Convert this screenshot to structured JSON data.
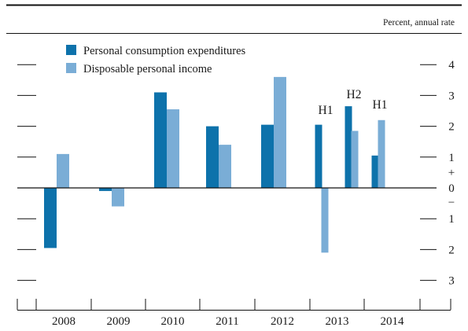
{
  "chart_data": {
    "type": "bar",
    "units": "Percent, annual rate",
    "categories": [
      "2008",
      "2009",
      "2010",
      "2011",
      "2012",
      "2013 H1",
      "2013 H2",
      "2014 H1"
    ],
    "x_tick_labels": [
      "2008",
      "2009",
      "2010",
      "2011",
      "2012",
      "2013",
      "2014"
    ],
    "series": [
      {
        "name": "Personal consumption expenditures",
        "color": "#0d72ab",
        "values": [
          -1.95,
          -0.1,
          3.1,
          2.0,
          2.05,
          2.05,
          2.65,
          1.05
        ]
      },
      {
        "name": "Disposable personal income",
        "color": "#7aadd6",
        "values": [
          1.1,
          -0.6,
          2.55,
          1.4,
          3.6,
          -2.1,
          1.85,
          2.2
        ]
      }
    ],
    "annotations": [
      "H1",
      "H2",
      "H1"
    ],
    "y_tick_labels": [
      {
        "value": 4,
        "label": "4"
      },
      {
        "value": 3,
        "label": "3"
      },
      {
        "value": 2,
        "label": "2"
      },
      {
        "value": 1,
        "label": "1"
      },
      {
        "value": 0,
        "label": "0"
      },
      {
        "value": -1,
        "label": "1"
      },
      {
        "value": -2,
        "label": "2"
      },
      {
        "value": -3,
        "label": "3"
      }
    ],
    "sign_markers": {
      "plus": "+",
      "minus": "−"
    },
    "ylim": [
      -3.5,
      4.5
    ],
    "grid": false,
    "legend_position": "top-left"
  }
}
